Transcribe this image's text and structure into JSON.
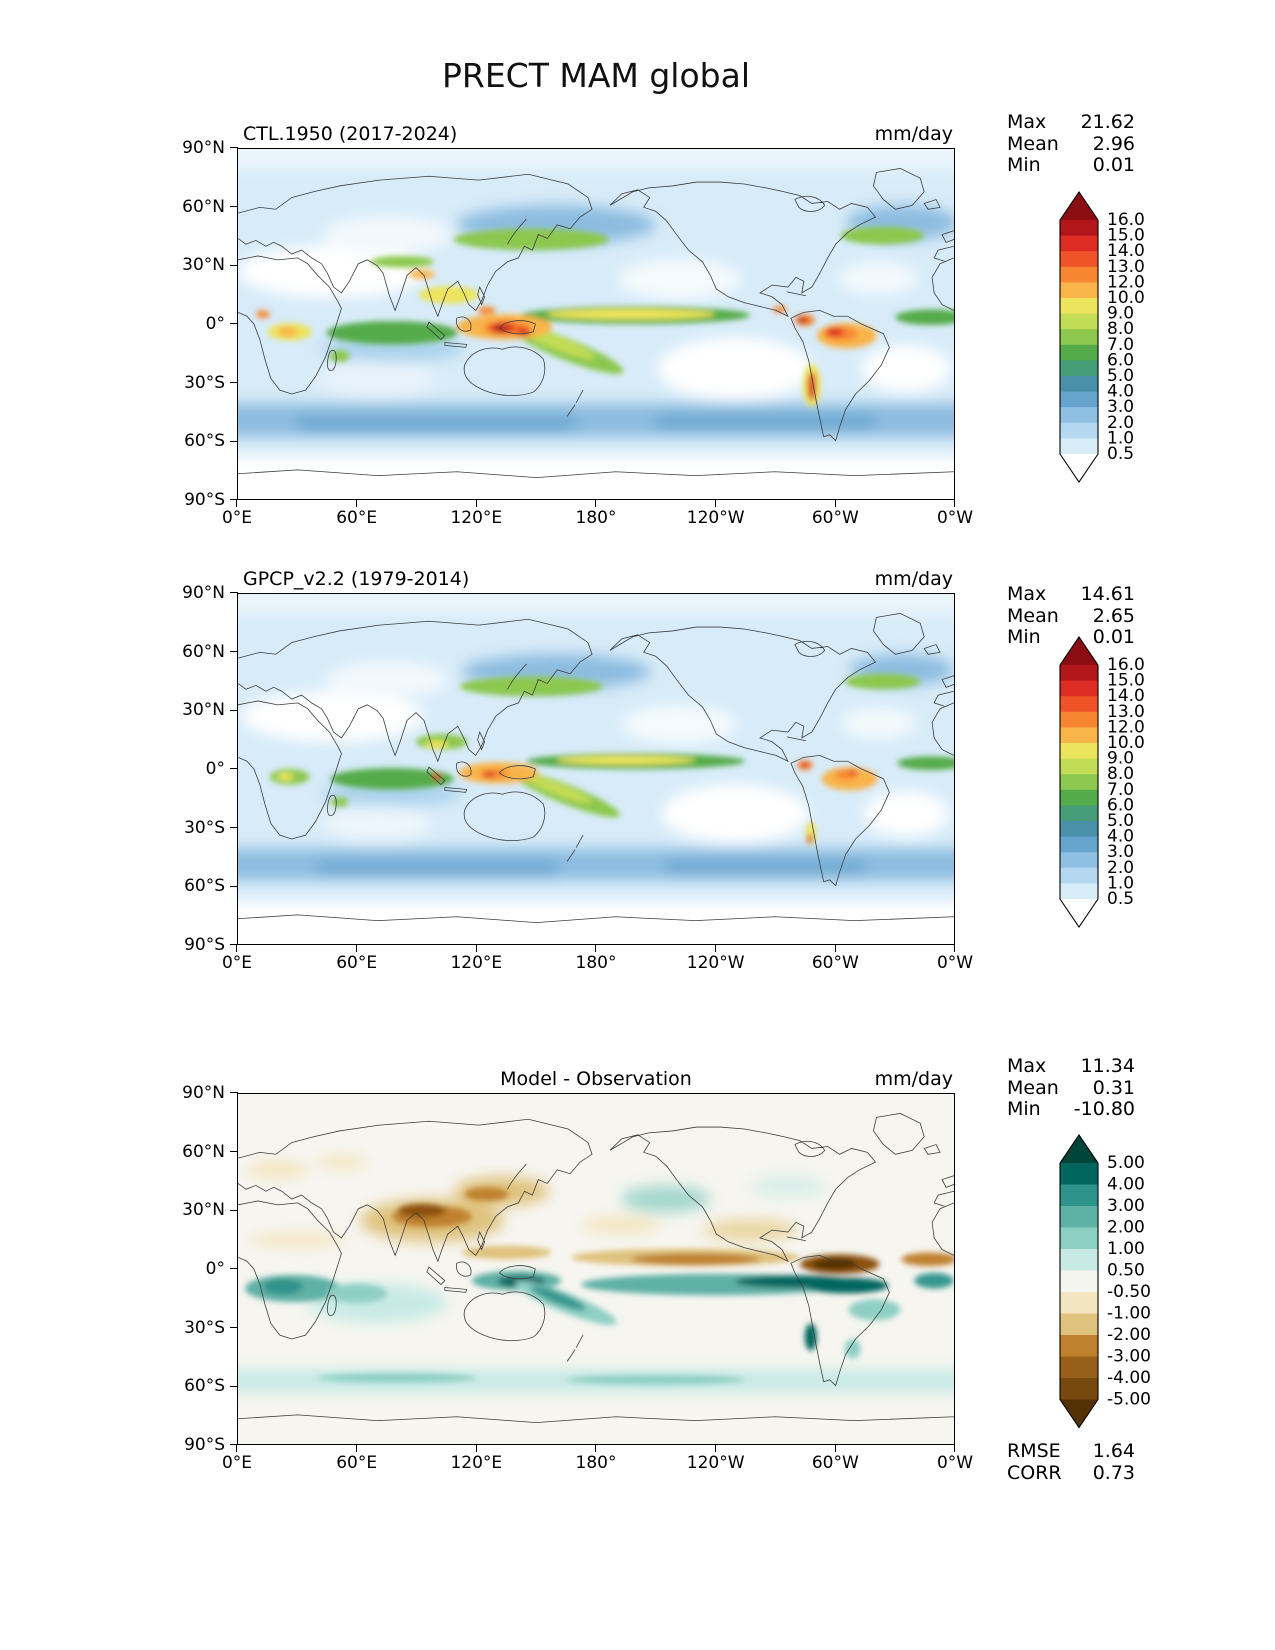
{
  "figure": {
    "title": "PRECT MAM global"
  },
  "panels": [
    {
      "id": "model",
      "title": "CTL.1950 (2017-2024)",
      "units": "mm/day",
      "stats": {
        "max_label": "Max",
        "max": "21.62",
        "mean_label": "Mean",
        "mean": "2.96",
        "min_label": "Min",
        "min": "0.01"
      }
    },
    {
      "id": "obs",
      "title": "GPCP_v2.2 (1979-2014)",
      "units": "mm/day",
      "stats": {
        "max_label": "Max",
        "max": "14.61",
        "mean_label": "Mean",
        "mean": "2.65",
        "min_label": "Min",
        "min": "0.01"
      }
    },
    {
      "id": "diff",
      "title": "Model - Observation",
      "units": "mm/day",
      "stats": {
        "max_label": "Max",
        "max": "11.34",
        "mean_label": "Mean",
        "mean": "0.31",
        "min_label": "Min",
        "min": "-10.80"
      },
      "metrics": {
        "rmse_label": "RMSE",
        "rmse": "1.64",
        "corr_label": "CORR",
        "corr": "0.73"
      }
    }
  ],
  "axes": {
    "lat_ticks": [
      "90°N",
      "60°N",
      "30°N",
      "0°",
      "30°S",
      "60°S",
      "90°S"
    ],
    "lon_ticks": [
      "0°E",
      "60°E",
      "120°E",
      "180°",
      "120°W",
      "60°W",
      "0°W"
    ]
  },
  "colorbars": {
    "precip": {
      "labels": [
        "16.0",
        "15.0",
        "14.0",
        "13.0",
        "12.0",
        "10.0",
        "9.0",
        "8.0",
        "7.0",
        "6.0",
        "5.0",
        "4.0",
        "3.0",
        "2.0",
        "1.0",
        "0.5"
      ],
      "segment_colors_top_to_bottom": [
        "#b2161b",
        "#dd2c23",
        "#ef5429",
        "#f68630",
        "#f9b44a",
        "#ece45c",
        "#c3dc55",
        "#8cc84e",
        "#54ab49",
        "#469d78",
        "#4a90a8",
        "#66a4ce",
        "#8fc0e4",
        "#b3d8f0",
        "#d8ecf8"
      ],
      "over_color": "#8b0d12",
      "under_color": "#ffffff"
    },
    "diff": {
      "labels": [
        "5.00",
        "4.00",
        "3.00",
        "2.00",
        "1.00",
        "0.50",
        "-0.50",
        "-1.00",
        "-2.00",
        "-3.00",
        "-4.00",
        "-5.00"
      ],
      "segment_colors_top_to_bottom": [
        "#01665e",
        "#2e938a",
        "#5fb0a5",
        "#8ecfc4",
        "#c7eae5",
        "#f5f5ef",
        "#f3e5bf",
        "#dfc27d",
        "#bf812d",
        "#97601a",
        "#77490e"
      ],
      "over_color": "#00453a",
      "under_color": "#543005"
    }
  },
  "chart_data": [
    {
      "type": "heatmap",
      "projection": "global equirectangular (0°E–0°W, 90°N–90°S)",
      "variable": "PRECT",
      "season": "MAM",
      "title": "CTL.1950 (2017-2024)",
      "units": "mm/day",
      "stats": {
        "max": 21.62,
        "mean": 2.96,
        "min": 0.01
      },
      "contour_levels": [
        0.5,
        1,
        2,
        3,
        4,
        5,
        6,
        7,
        8,
        9,
        10,
        12,
        13,
        14,
        15,
        16
      ],
      "xlabel_ticks": [
        "0°E",
        "60°E",
        "120°E",
        "180°",
        "120°W",
        "60°W",
        "0°W"
      ],
      "ylabel_ticks": [
        "90°N",
        "60°N",
        "30°N",
        "0°",
        "30°S",
        "60°S",
        "90°S"
      ],
      "legend_position": "right",
      "grid": false
    },
    {
      "type": "heatmap",
      "projection": "global equirectangular (0°E–0°W, 90°N–90°S)",
      "variable": "PRECT",
      "season": "MAM",
      "title": "GPCP_v2.2 (1979-2014)",
      "units": "mm/day",
      "stats": {
        "max": 14.61,
        "mean": 2.65,
        "min": 0.01
      },
      "contour_levels": [
        0.5,
        1,
        2,
        3,
        4,
        5,
        6,
        7,
        8,
        9,
        10,
        12,
        13,
        14,
        15,
        16
      ],
      "xlabel_ticks": [
        "0°E",
        "60°E",
        "120°E",
        "180°",
        "120°W",
        "60°W",
        "0°W"
      ],
      "ylabel_ticks": [
        "90°N",
        "60°N",
        "30°N",
        "0°",
        "30°S",
        "60°S",
        "90°S"
      ],
      "legend_position": "right",
      "grid": false
    },
    {
      "type": "heatmap",
      "projection": "global equirectangular (0°E–0°W, 90°N–90°S)",
      "variable": "PRECT difference",
      "season": "MAM",
      "title": "Model - Observation",
      "units": "mm/day",
      "stats": {
        "max": 11.34,
        "mean": 0.31,
        "min": -10.8
      },
      "metrics": {
        "rmse": 1.64,
        "corr": 0.73
      },
      "contour_levels": [
        -5,
        -4,
        -3,
        -2,
        -1,
        -0.5,
        0.5,
        1,
        2,
        3,
        4,
        5
      ],
      "xlabel_ticks": [
        "0°E",
        "60°E",
        "120°E",
        "180°",
        "120°W",
        "60°W",
        "0°W"
      ],
      "ylabel_ticks": [
        "90°N",
        "60°N",
        "30°N",
        "0°",
        "30°S",
        "60°S",
        "90°S"
      ],
      "legend_position": "right",
      "grid": false
    }
  ]
}
